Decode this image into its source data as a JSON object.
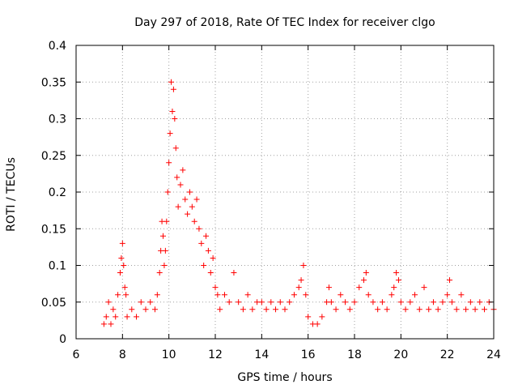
{
  "chart_data": {
    "type": "scatter",
    "title": "Day 297 of 2018, Rate Of TEC Index for receiver clgo",
    "xlabel": "GPS time / hours",
    "ylabel": "ROTI / TECUs",
    "xlim": [
      6,
      24
    ],
    "ylim": [
      0,
      0.4
    ],
    "x_ticks": [
      6,
      8,
      10,
      12,
      14,
      16,
      18,
      20,
      22,
      24
    ],
    "x_tick_labels": [
      "6",
      "8",
      "10",
      "12",
      "14",
      "16",
      "18",
      "20",
      "22",
      "24"
    ],
    "y_ticks": [
      0,
      0.05,
      0.1,
      0.15,
      0.2,
      0.25,
      0.3,
      0.35,
      0.4
    ],
    "y_tick_labels": [
      "0",
      "0.05",
      "0.1",
      "0.15",
      "0.2",
      "0.25",
      "0.3",
      "0.35",
      "0.4"
    ],
    "grid": true,
    "marker": "+",
    "color": "#ff0000",
    "series": [
      {
        "name": "ROTI",
        "points": [
          [
            7.2,
            0.02
          ],
          [
            7.3,
            0.03
          ],
          [
            7.4,
            0.05
          ],
          [
            7.5,
            0.02
          ],
          [
            7.6,
            0.04
          ],
          [
            7.7,
            0.03
          ],
          [
            7.8,
            0.06
          ],
          [
            7.9,
            0.09
          ],
          [
            7.95,
            0.11
          ],
          [
            8.0,
            0.13
          ],
          [
            8.05,
            0.1
          ],
          [
            8.1,
            0.07
          ],
          [
            8.15,
            0.06
          ],
          [
            8.2,
            0.03
          ],
          [
            8.4,
            0.04
          ],
          [
            8.6,
            0.03
          ],
          [
            8.8,
            0.05
          ],
          [
            9.0,
            0.04
          ],
          [
            9.2,
            0.05
          ],
          [
            9.4,
            0.04
          ],
          [
            9.5,
            0.06
          ],
          [
            9.6,
            0.09
          ],
          [
            9.65,
            0.12
          ],
          [
            9.7,
            0.16
          ],
          [
            9.75,
            0.14
          ],
          [
            9.8,
            0.1
          ],
          [
            9.85,
            0.12
          ],
          [
            9.9,
            0.16
          ],
          [
            9.95,
            0.2
          ],
          [
            10.0,
            0.24
          ],
          [
            10.05,
            0.28
          ],
          [
            10.1,
            0.35
          ],
          [
            10.15,
            0.31
          ],
          [
            10.2,
            0.34
          ],
          [
            10.25,
            0.3
          ],
          [
            10.3,
            0.26
          ],
          [
            10.35,
            0.22
          ],
          [
            10.4,
            0.18
          ],
          [
            10.5,
            0.21
          ],
          [
            10.6,
            0.23
          ],
          [
            10.7,
            0.19
          ],
          [
            10.8,
            0.17
          ],
          [
            10.9,
            0.2
          ],
          [
            11.0,
            0.18
          ],
          [
            11.1,
            0.16
          ],
          [
            11.2,
            0.19
          ],
          [
            11.3,
            0.15
          ],
          [
            11.4,
            0.13
          ],
          [
            11.5,
            0.1
          ],
          [
            11.6,
            0.14
          ],
          [
            11.7,
            0.12
          ],
          [
            11.8,
            0.09
          ],
          [
            11.9,
            0.11
          ],
          [
            12.0,
            0.07
          ],
          [
            12.1,
            0.06
          ],
          [
            12.2,
            0.04
          ],
          [
            12.4,
            0.06
          ],
          [
            12.6,
            0.05
          ],
          [
            12.8,
            0.09
          ],
          [
            13.0,
            0.05
          ],
          [
            13.2,
            0.04
          ],
          [
            13.4,
            0.06
          ],
          [
            13.6,
            0.04
          ],
          [
            13.8,
            0.05
          ],
          [
            14.0,
            0.05
          ],
          [
            14.2,
            0.04
          ],
          [
            14.4,
            0.05
          ],
          [
            14.6,
            0.04
          ],
          [
            14.8,
            0.05
          ],
          [
            15.0,
            0.04
          ],
          [
            15.2,
            0.05
          ],
          [
            15.4,
            0.06
          ],
          [
            15.6,
            0.07
          ],
          [
            15.7,
            0.08
          ],
          [
            15.8,
            0.1
          ],
          [
            15.9,
            0.06
          ],
          [
            16.0,
            0.03
          ],
          [
            16.2,
            0.02
          ],
          [
            16.4,
            0.02
          ],
          [
            16.6,
            0.03
          ],
          [
            16.8,
            0.05
          ],
          [
            16.9,
            0.07
          ],
          [
            17.0,
            0.05
          ],
          [
            17.2,
            0.04
          ],
          [
            17.4,
            0.06
          ],
          [
            17.6,
            0.05
          ],
          [
            17.8,
            0.04
          ],
          [
            18.0,
            0.05
          ],
          [
            18.2,
            0.07
          ],
          [
            18.4,
            0.08
          ],
          [
            18.5,
            0.09
          ],
          [
            18.6,
            0.06
          ],
          [
            18.8,
            0.05
          ],
          [
            19.0,
            0.04
          ],
          [
            19.2,
            0.05
          ],
          [
            19.4,
            0.04
          ],
          [
            19.6,
            0.06
          ],
          [
            19.7,
            0.07
          ],
          [
            19.8,
            0.09
          ],
          [
            19.9,
            0.08
          ],
          [
            20.0,
            0.05
          ],
          [
            20.2,
            0.04
          ],
          [
            20.4,
            0.05
          ],
          [
            20.6,
            0.06
          ],
          [
            20.8,
            0.04
          ],
          [
            21.0,
            0.07
          ],
          [
            21.2,
            0.04
          ],
          [
            21.4,
            0.05
          ],
          [
            21.6,
            0.04
          ],
          [
            21.8,
            0.05
          ],
          [
            22.0,
            0.06
          ],
          [
            22.1,
            0.08
          ],
          [
            22.2,
            0.05
          ],
          [
            22.4,
            0.04
          ],
          [
            22.6,
            0.06
          ],
          [
            22.8,
            0.04
          ],
          [
            23.0,
            0.05
          ],
          [
            23.2,
            0.04
          ],
          [
            23.4,
            0.05
          ],
          [
            23.6,
            0.04
          ],
          [
            23.8,
            0.05
          ],
          [
            24.0,
            0.04
          ]
        ]
      }
    ]
  }
}
